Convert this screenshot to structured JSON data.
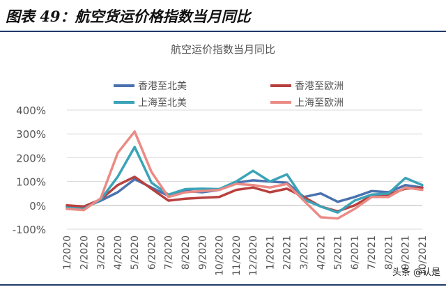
{
  "figure_title": "图表 49：航空货运价格指数当月同比",
  "watermark": "头条 @认是",
  "chart_data": {
    "type": "line",
    "title": "航空运价指数当月同比",
    "xlabel": "",
    "ylabel": "",
    "categories": [
      "1/2020",
      "2/2020",
      "3/2020",
      "4/2020",
      "5/2020",
      "6/2020",
      "7/2020",
      "8/2020",
      "9/2020",
      "10/2020",
      "11/2020",
      "12/2020",
      "1/2021",
      "2/2021",
      "3/2021",
      "4/2021",
      "5/2021",
      "6/2021",
      "7/2021",
      "8/2021",
      "9/2021",
      "10/2021"
    ],
    "x": [
      0,
      0.667,
      1.333,
      2,
      2.667,
      3.333,
      4,
      4.667,
      5.333,
      6,
      6.667,
      7.333,
      8,
      8.667,
      9.333,
      10,
      10.667,
      11.333,
      12,
      12.667,
      13.333,
      14
    ],
    "ylim": [
      -100,
      400
    ],
    "yticks": [
      -100,
      0,
      100,
      200,
      300,
      400
    ],
    "ytick_labels": [
      "-100%",
      "0%",
      "100%",
      "200%",
      "300%",
      "400%"
    ],
    "grid": true,
    "legend_position": "top",
    "series": [
      {
        "name": "香港至北美",
        "color": "#4a72b0",
        "values": [
          -5,
          -10,
          20,
          55,
          110,
          75,
          40,
          60,
          55,
          65,
          95,
          105,
          100,
          95,
          35,
          50,
          15,
          35,
          60,
          55,
          85,
          75
        ]
      },
      {
        "name": "香港至欧洲",
        "color": "#b8403e",
        "values": [
          0,
          -5,
          25,
          85,
          120,
          70,
          20,
          28,
          32,
          35,
          65,
          75,
          55,
          70,
          35,
          -5,
          -25,
          0,
          40,
          45,
          70,
          75
        ]
      },
      {
        "name": "上海至北美",
        "color": "#3aa3b8",
        "values": [
          -10,
          -15,
          25,
          120,
          245,
          95,
          45,
          68,
          70,
          68,
          100,
          145,
          100,
          130,
          25,
          -5,
          -30,
          20,
          45,
          50,
          115,
          85
        ]
      },
      {
        "name": "上海至欧洲",
        "color": "#ea8b85",
        "values": [
          -15,
          -20,
          30,
          220,
          310,
          140,
          35,
          55,
          60,
          65,
          90,
          85,
          75,
          90,
          20,
          -50,
          -55,
          -15,
          35,
          35,
          75,
          65
        ]
      }
    ]
  }
}
